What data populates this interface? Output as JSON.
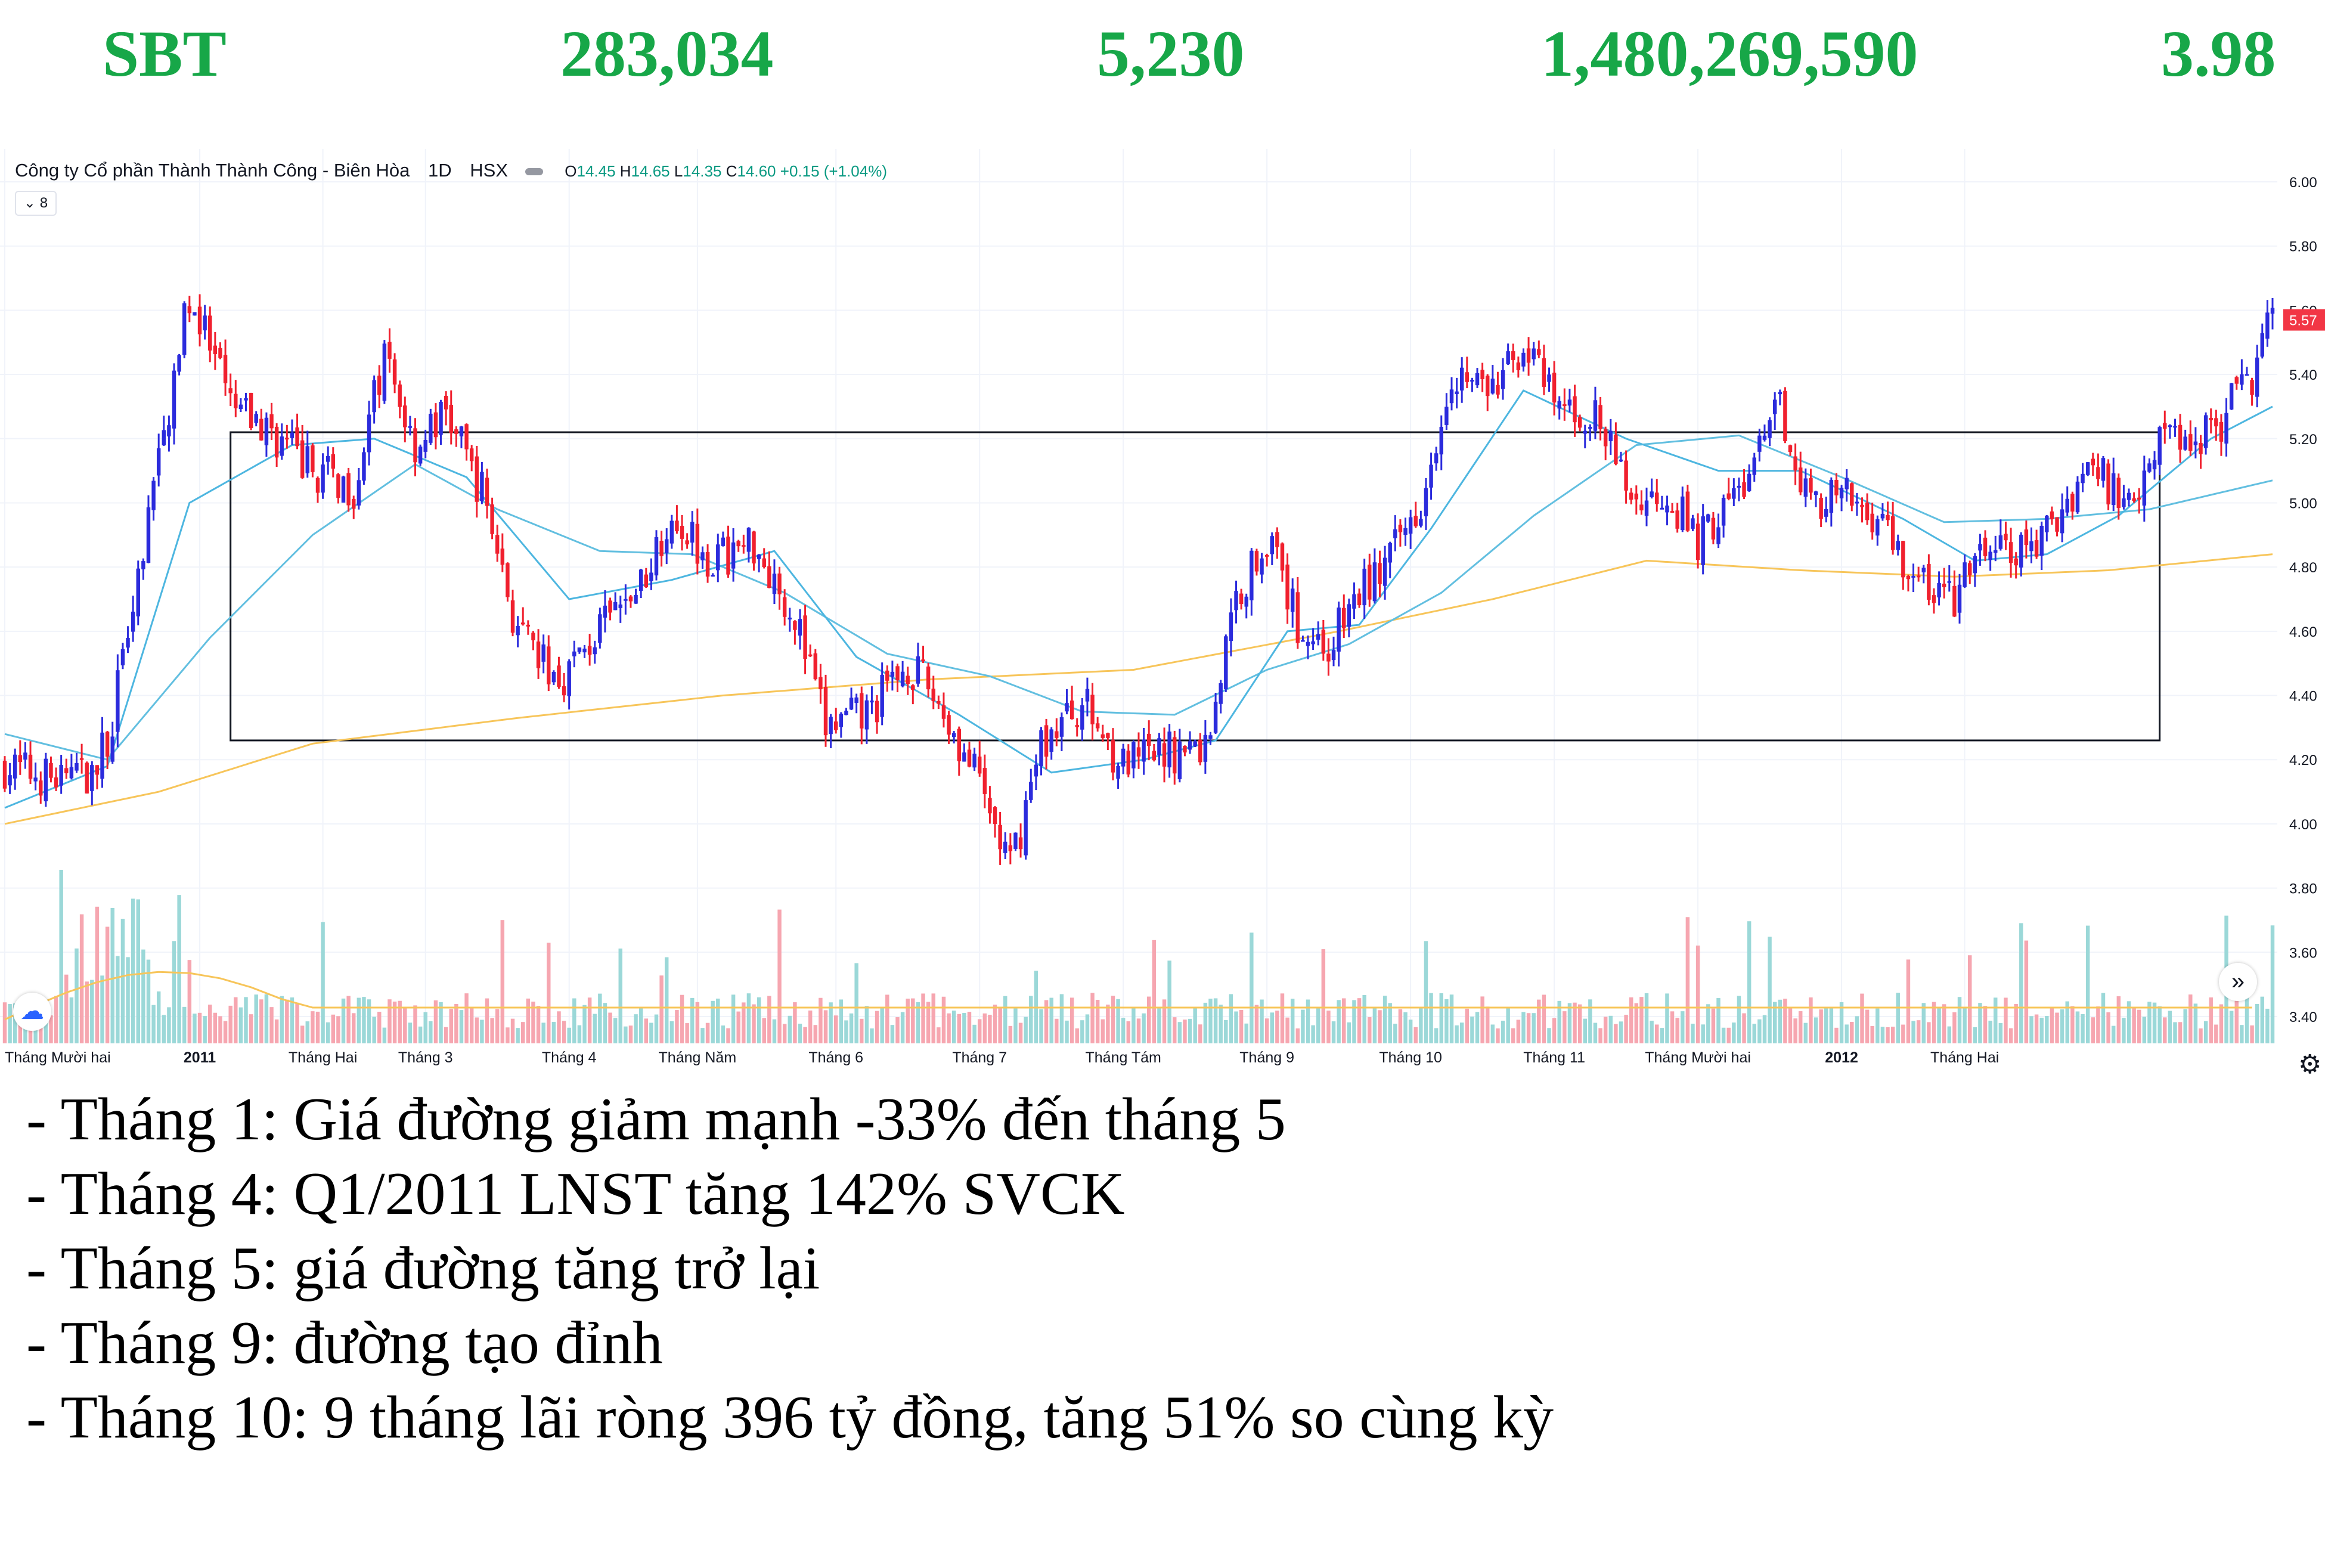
{
  "header": {
    "ticker": "SBT",
    "value1": "283,034",
    "value2": "5,230",
    "value3": "1,480,269,590",
    "value4": "3.98"
  },
  "chart_legend": {
    "symbol": "Công ty Cổ phần Thành Thành Công - Biên Hòa",
    "interval": "1D",
    "exchange": "HSX",
    "ohlc": [
      {
        "k": "O",
        "v": "14.45"
      },
      {
        "k": "H",
        "v": "14.65"
      },
      {
        "k": "L",
        "v": "14.35"
      },
      {
        "k": "C",
        "v": "14.60"
      }
    ],
    "change": "+0.15 (+1.04%)",
    "indicator_count": "8"
  },
  "colors": {
    "up": "#2b2bdc",
    "down": "#f0202e",
    "ma_short": "#4db6e0",
    "ma_mid": "#62bfe0",
    "ma_long": "#f7c55a",
    "volume_up": "#9bd8d8",
    "volume_down": "#f6a6b0",
    "header_green": "#17a748",
    "last_price_bg": "#f23645"
  },
  "chart_data": {
    "type": "candlestick",
    "y_axis": {
      "min": 3.4,
      "max": 6.0,
      "ticks": [
        "6.00",
        "5.80",
        "5.60",
        "5.40",
        "5.20",
        "5.00",
        "4.80",
        "4.60",
        "4.40",
        "4.20",
        "4.00",
        "3.80",
        "3.60",
        "3.40"
      ]
    },
    "x_labels": [
      "Tháng Mười hai",
      "2011",
      "Tháng Hai",
      "Tháng 3",
      "Tháng 4",
      "Tháng Năm",
      "Tháng 6",
      "Tháng 7",
      "Tháng Tám",
      "Tháng 9",
      "Tháng 10",
      "Tháng 11",
      "Tháng Mười hai",
      "2012",
      "Tháng Hai"
    ],
    "last_price_label": "5.57",
    "highlight_box": {
      "y_top": 5.22,
      "y_bottom": 4.26
    },
    "price_path": [
      [
        0,
        4.18
      ],
      [
        14,
        4.12
      ],
      [
        20,
        4.25
      ],
      [
        28,
        4.95
      ],
      [
        36,
        5.65
      ],
      [
        44,
        5.3
      ],
      [
        52,
        5.22
      ],
      [
        60,
        5.1
      ],
      [
        68,
        5.05
      ],
      [
        74,
        5.45
      ],
      [
        80,
        5.18
      ],
      [
        86,
        5.28
      ],
      [
        94,
        5.0
      ],
      [
        100,
        4.58
      ],
      [
        108,
        4.45
      ],
      [
        116,
        4.6
      ],
      [
        124,
        4.75
      ],
      [
        130,
        4.98
      ],
      [
        138,
        4.82
      ],
      [
        146,
        4.88
      ],
      [
        154,
        4.65
      ],
      [
        160,
        4.3
      ],
      [
        168,
        4.34
      ],
      [
        176,
        4.5
      ],
      [
        182,
        4.38
      ],
      [
        190,
        4.12
      ],
      [
        196,
        3.86
      ],
      [
        202,
        4.25
      ],
      [
        210,
        4.38
      ],
      [
        218,
        4.18
      ],
      [
        226,
        4.22
      ],
      [
        234,
        4.24
      ],
      [
        240,
        4.7
      ],
      [
        246,
        4.9
      ],
      [
        252,
        4.62
      ],
      [
        258,
        4.55
      ],
      [
        264,
        4.72
      ],
      [
        270,
        4.82
      ],
      [
        276,
        5.02
      ],
      [
        282,
        5.42
      ],
      [
        290,
        5.34
      ],
      [
        296,
        5.5
      ],
      [
        302,
        5.3
      ],
      [
        310,
        5.26
      ],
      [
        318,
        5.0
      ],
      [
        324,
        5.04
      ],
      [
        330,
        4.88
      ],
      [
        340,
        5.08
      ],
      [
        346,
        5.3
      ],
      [
        352,
        5.0
      ],
      [
        358,
        5.02
      ],
      [
        366,
        4.95
      ],
      [
        372,
        4.76
      ],
      [
        380,
        4.7
      ],
      [
        386,
        4.86
      ],
      [
        392,
        4.84
      ],
      [
        398,
        4.9
      ],
      [
        406,
        5.12
      ],
      [
        414,
        5.0
      ],
      [
        420,
        5.22
      ],
      [
        426,
        5.2
      ],
      [
        432,
        5.26
      ],
      [
        438,
        5.4
      ],
      [
        442,
        5.57
      ]
    ],
    "ma_short_path": [
      [
        0,
        4.05
      ],
      [
        20,
        4.18
      ],
      [
        36,
        5.0
      ],
      [
        56,
        5.18
      ],
      [
        72,
        5.2
      ],
      [
        90,
        5.08
      ],
      [
        110,
        4.7
      ],
      [
        130,
        4.76
      ],
      [
        150,
        4.85
      ],
      [
        166,
        4.52
      ],
      [
        186,
        4.34
      ],
      [
        204,
        4.16
      ],
      [
        222,
        4.2
      ],
      [
        236,
        4.26
      ],
      [
        250,
        4.6
      ],
      [
        264,
        4.62
      ],
      [
        278,
        4.92
      ],
      [
        296,
        5.35
      ],
      [
        316,
        5.2
      ],
      [
        334,
        5.1
      ],
      [
        350,
        5.1
      ],
      [
        370,
        4.95
      ],
      [
        384,
        4.82
      ],
      [
        398,
        4.84
      ],
      [
        412,
        4.96
      ],
      [
        430,
        5.2
      ],
      [
        442,
        5.3
      ]
    ],
    "ma_mid_path": [
      [
        0,
        4.28
      ],
      [
        20,
        4.2
      ],
      [
        40,
        4.58
      ],
      [
        60,
        4.9
      ],
      [
        80,
        5.12
      ],
      [
        96,
        4.98
      ],
      [
        116,
        4.85
      ],
      [
        134,
        4.84
      ],
      [
        152,
        4.72
      ],
      [
        172,
        4.53
      ],
      [
        192,
        4.46
      ],
      [
        210,
        4.35
      ],
      [
        228,
        4.34
      ],
      [
        246,
        4.48
      ],
      [
        262,
        4.56
      ],
      [
        280,
        4.72
      ],
      [
        298,
        4.96
      ],
      [
        318,
        5.18
      ],
      [
        338,
        5.21
      ],
      [
        358,
        5.08
      ],
      [
        378,
        4.94
      ],
      [
        398,
        4.95
      ],
      [
        418,
        4.98
      ],
      [
        442,
        5.07
      ]
    ],
    "ma_long_path": [
      [
        0,
        4.0
      ],
      [
        30,
        4.1
      ],
      [
        60,
        4.25
      ],
      [
        100,
        4.33
      ],
      [
        140,
        4.4
      ],
      [
        180,
        4.45
      ],
      [
        220,
        4.48
      ],
      [
        260,
        4.6
      ],
      [
        290,
        4.7
      ],
      [
        320,
        4.82
      ],
      [
        350,
        4.79
      ],
      [
        380,
        4.77
      ],
      [
        410,
        4.79
      ],
      [
        442,
        4.84
      ]
    ]
  },
  "notes": [
    "- Tháng 1: Giá đường giảm mạnh -33% đến tháng 5",
    "- Tháng 4: Q1/2011 LNST tăng 142% SVCK",
    "- Tháng 5: giá đường tăng trở lại",
    "- Tháng 9: đường tạo đỉnh",
    "- Tháng 10: 9 tháng lãi ròng 396 tỷ đồng, tăng 51% so cùng kỳ"
  ]
}
